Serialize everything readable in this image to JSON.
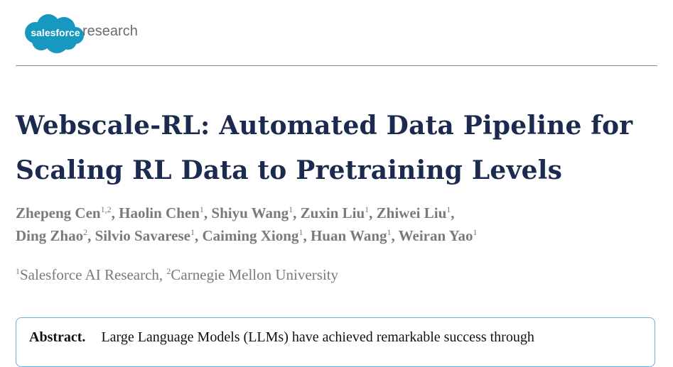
{
  "logo": {
    "brand": "salesforce",
    "suffix": "research",
    "cloud_color": "#1798c1"
  },
  "title": "Webscale-RL: Automated Data Pipeline for Scaling RL Data to Pretraining Levels",
  "authors": [
    {
      "name": "Zhepeng Cen",
      "aff": "1,2"
    },
    {
      "name": "Haolin Chen",
      "aff": "1"
    },
    {
      "name": "Shiyu Wang",
      "aff": "1"
    },
    {
      "name": "Zuxin Liu",
      "aff": "1"
    },
    {
      "name": "Zhiwei Liu",
      "aff": "1"
    },
    {
      "name": "Ding Zhao",
      "aff": "2"
    },
    {
      "name": "Silvio Savarese",
      "aff": "1"
    },
    {
      "name": "Caiming Xiong",
      "aff": "1"
    },
    {
      "name": "Huan Wang",
      "aff": "1"
    },
    {
      "name": "Weiran Yao",
      "aff": "1"
    }
  ],
  "affiliations": [
    {
      "num": "1",
      "name": "Salesforce AI Research"
    },
    {
      "num": "2",
      "name": "Carnegie Mellon University"
    }
  ],
  "abstract": {
    "label": "Abstract.",
    "text": "Large Language Models (LLMs) have achieved remarkable success through"
  },
  "colors": {
    "title": "#1b2a4e",
    "authors": "#7a7a7a",
    "abstract_border": "#5fb4e5"
  }
}
